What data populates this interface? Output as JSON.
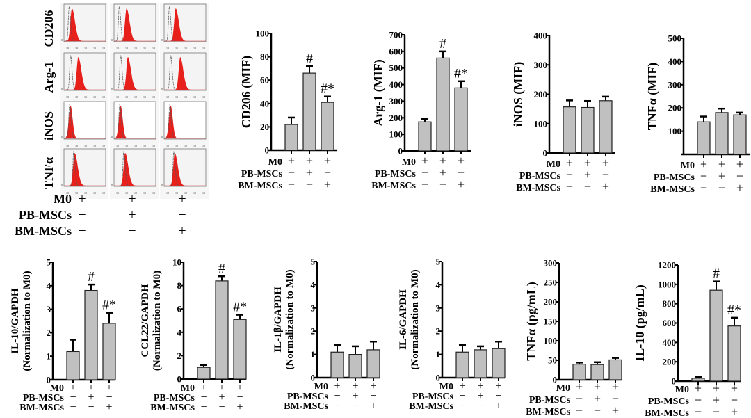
{
  "groups": {
    "row_labels": [
      "M0",
      "PB-MSCs",
      "BM-MSCs"
    ],
    "conditions": [
      [
        "+",
        "−",
        "−"
      ],
      [
        "+",
        "+",
        "−"
      ],
      [
        "+",
        "−",
        "+"
      ]
    ]
  },
  "flow_panel": {
    "markers": [
      "CD206",
      "Arg-1",
      "iNOS",
      "TNFα"
    ],
    "histogram_fill_color": "#e8201c",
    "control_line_color": "#555555",
    "peak_positions_log10": [
      [
        0.65,
        1.15,
        1.05
      ],
      [
        1.35,
        1.3,
        1.55
      ],
      [
        0.5,
        0.5,
        0.5
      ],
      [
        0.95,
        1.0,
        0.95
      ]
    ],
    "control_peak_log10": [
      0.35,
      0.5,
      0.4,
      0.85
    ]
  },
  "chart_data": [
    {
      "type": "bar",
      "id": "cd206",
      "ylabel": "CD206 (MIF)",
      "ylim": [
        0,
        100
      ],
      "yticks": [
        0,
        20,
        40,
        60,
        80,
        100
      ],
      "categories": [
        "M0",
        "M0+PB-MSCs",
        "M0+BM-MSCs"
      ],
      "values": [
        22,
        66,
        41
      ],
      "errors": [
        6,
        6,
        5
      ],
      "annotations": [
        "",
        "#",
        "#*"
      ]
    },
    {
      "type": "bar",
      "id": "arg1",
      "ylabel": "Arg-1 (MIF)",
      "ylim": [
        0,
        700
      ],
      "yticks": [
        0,
        100,
        200,
        300,
        400,
        500,
        600,
        700
      ],
      "categories": [
        "M0",
        "M0+PB-MSCs",
        "M0+BM-MSCs"
      ],
      "values": [
        175,
        560,
        380
      ],
      "errors": [
        18,
        40,
        40
      ],
      "annotations": [
        "",
        "#",
        "#*"
      ]
    },
    {
      "type": "bar",
      "id": "inos",
      "ylabel": "iNOS (MIF)",
      "ylim": [
        0,
        400
      ],
      "yticks": [
        0,
        100,
        200,
        300,
        400
      ],
      "categories": [
        "M0",
        "M0+PB-MSCs",
        "M0+BM-MSCs"
      ],
      "values": [
        157,
        155,
        178
      ],
      "errors": [
        22,
        22,
        14
      ],
      "annotations": [
        "",
        "",
        ""
      ]
    },
    {
      "type": "bar",
      "id": "tnfa-mif",
      "ylabel": "TNFα (MIF)",
      "ylim": [
        0,
        500
      ],
      "yticks": [
        100,
        200,
        300,
        400,
        500
      ],
      "categories": [
        "M0",
        "M0+PB-MSCs",
        "M0+BM-MSCs"
      ],
      "values": [
        140,
        180,
        170
      ],
      "errors": [
        23,
        17,
        10
      ],
      "annotations": [
        "",
        "",
        ""
      ]
    },
    {
      "type": "bar",
      "id": "il10-gapdh",
      "ylabel": "IL-10/GAPDH",
      "ylabel2": "(Normalization to M0)",
      "ylim": [
        0,
        5
      ],
      "yticks": [
        0,
        1,
        2,
        3,
        4,
        5
      ],
      "categories": [
        "M0",
        "M0+PB-MSCs",
        "M0+BM-MSCs"
      ],
      "values": [
        1.2,
        3.8,
        2.4
      ],
      "errors": [
        0.5,
        0.25,
        0.45
      ],
      "annotations": [
        "",
        "#",
        "#*"
      ]
    },
    {
      "type": "bar",
      "id": "ccl22-gapdh",
      "ylabel": "CCL22/GAPDH",
      "ylabel2": "(Normalization to M0)",
      "ylim": [
        0,
        10
      ],
      "yticks": [
        0,
        2,
        4,
        6,
        8,
        10
      ],
      "categories": [
        "M0",
        "M0+PB-MSCs",
        "M0+BM-MSCs"
      ],
      "values": [
        1.0,
        8.4,
        5.1
      ],
      "errors": [
        0.2,
        0.4,
        0.4
      ],
      "annotations": [
        "",
        "#",
        "#*"
      ]
    },
    {
      "type": "bar",
      "id": "il1b-gapdh",
      "ylabel": "IL-1β/GAPDH",
      "ylabel2": "(Normalization to M0)",
      "ylim": [
        0,
        5
      ],
      "yticks": [
        0,
        1,
        2,
        3,
        4,
        5
      ],
      "categories": [
        "M0",
        "M0+PB-MSCs",
        "M0+BM-MSCs"
      ],
      "values": [
        1.1,
        1.0,
        1.2
      ],
      "errors": [
        0.3,
        0.35,
        0.35
      ],
      "annotations": [
        "",
        "",
        ""
      ]
    },
    {
      "type": "bar",
      "id": "il6-gapdh",
      "ylabel": "IL-6/GAPDH",
      "ylabel2": "(Normalization to M0)",
      "ylim": [
        0,
        5
      ],
      "yticks": [
        0,
        1,
        2,
        3,
        4,
        5
      ],
      "categories": [
        "M0",
        "M0+PB-MSCs",
        "M0+BM-MSCs"
      ],
      "values": [
        1.1,
        1.2,
        1.25
      ],
      "errors": [
        0.3,
        0.15,
        0.3
      ],
      "annotations": [
        "",
        "",
        ""
      ]
    },
    {
      "type": "bar",
      "id": "tnfa-elisa",
      "ylabel": "TNFα (pg/mL)",
      "ylim": [
        0,
        300
      ],
      "yticks": [
        0,
        50,
        100,
        150,
        200,
        250,
        300
      ],
      "categories": [
        "M0",
        "M0+PB-MSCs",
        "M0+BM-MSCs"
      ],
      "values": [
        40,
        39,
        51
      ],
      "errors": [
        4,
        6,
        5
      ],
      "annotations": [
        "",
        "",
        ""
      ]
    },
    {
      "type": "bar",
      "id": "il10-elisa",
      "ylabel": "IL-10 (pg/mL)",
      "ylim": [
        0,
        1200
      ],
      "yticks": [
        0,
        200,
        400,
        600,
        800,
        1000,
        1200
      ],
      "categories": [
        "M0",
        "M0+PB-MSCs",
        "M0+BM-MSCs"
      ],
      "values": [
        30,
        940,
        570
      ],
      "errors": [
        15,
        90,
        85
      ],
      "annotations": [
        "",
        "#",
        "#*"
      ]
    }
  ]
}
